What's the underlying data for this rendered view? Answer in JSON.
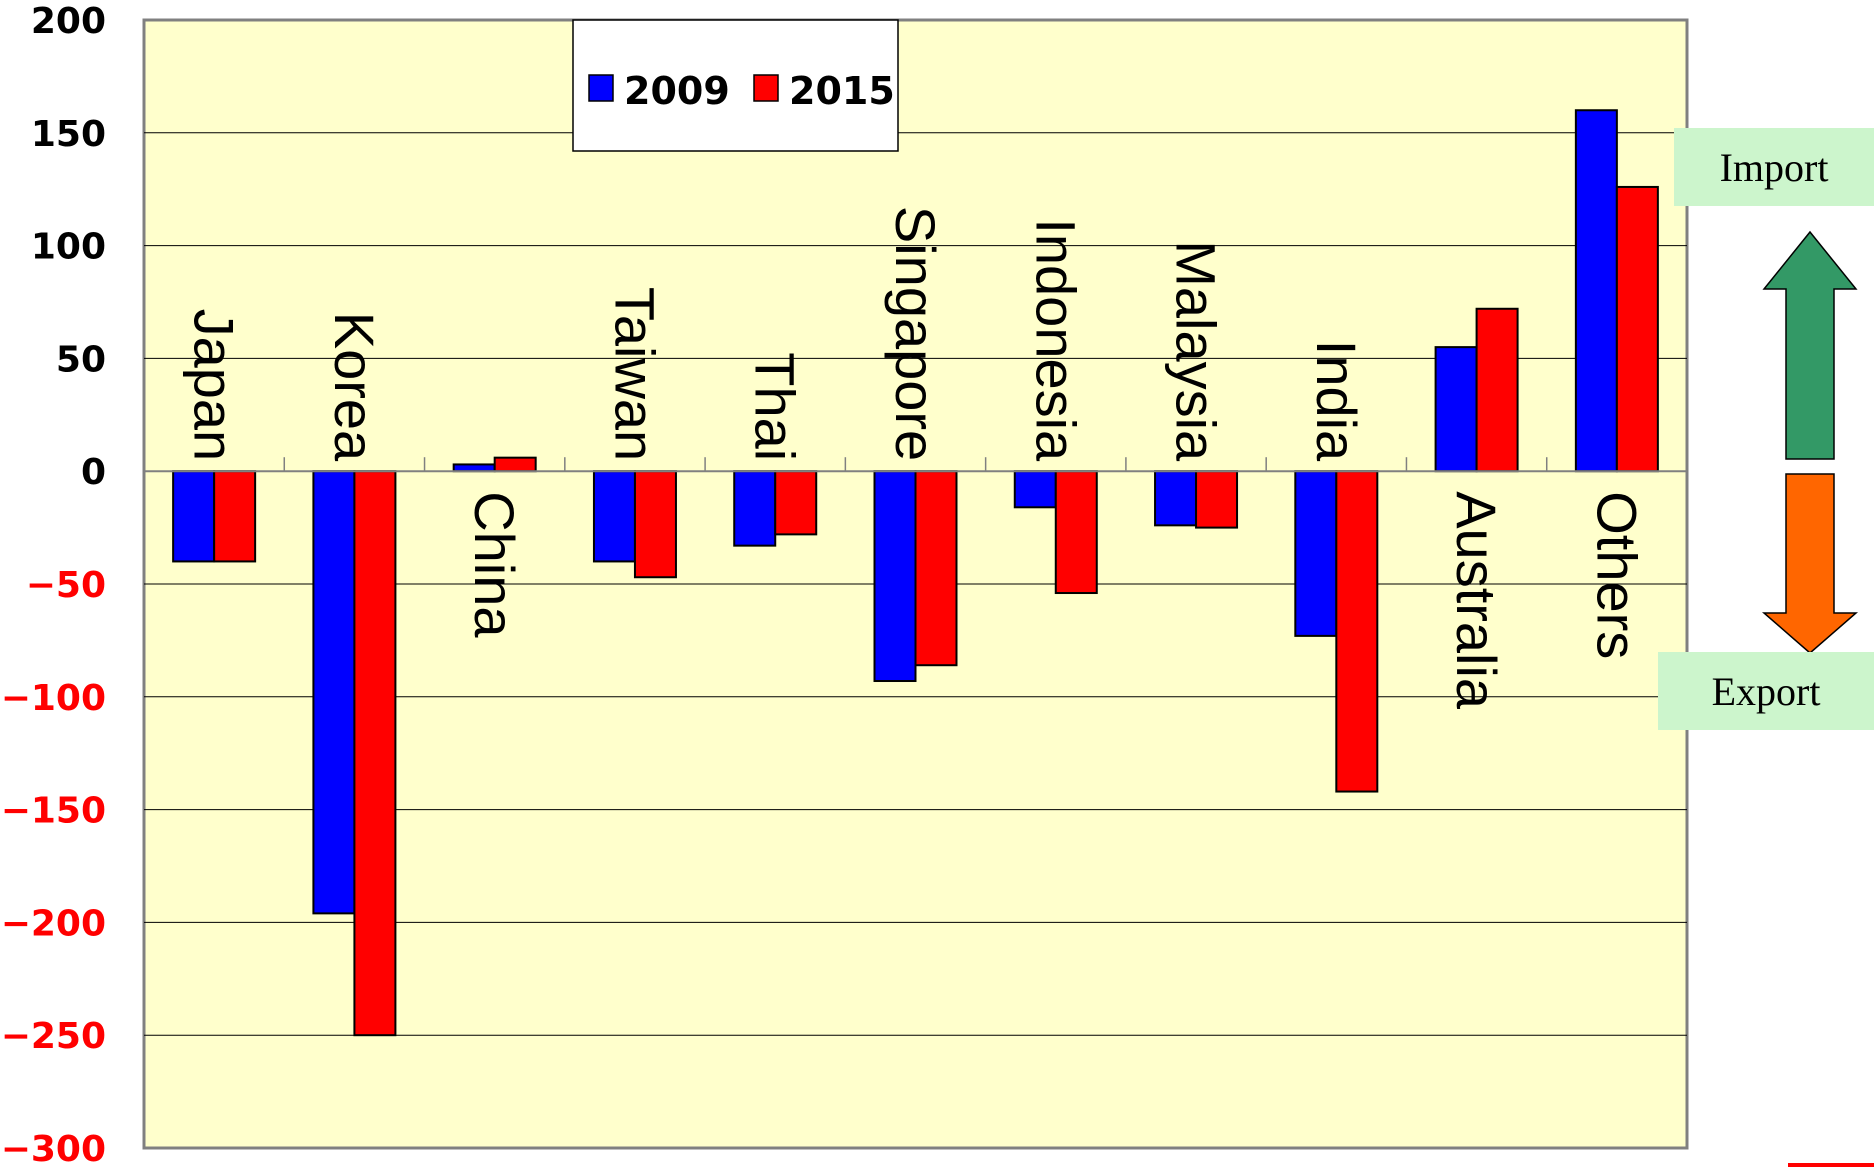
{
  "chart_data": {
    "type": "bar",
    "categories": [
      "Japan",
      "Korea",
      "China",
      "Taiwan",
      "Thai",
      "Singapore",
      "Indonesia",
      "Malaysia",
      "India",
      "Australia",
      "Others"
    ],
    "series": [
      {
        "name": "2009",
        "values": [
          -40,
          -196,
          3,
          -40,
          -33,
          -93,
          -16,
          -24,
          -73,
          55,
          160
        ]
      },
      {
        "name": "2015",
        "values": [
          -40,
          -250,
          6,
          -47,
          -28,
          -86,
          -54,
          -25,
          -142,
          72,
          126
        ]
      }
    ],
    "ylim": [
      -300,
      200
    ],
    "yticks": [
      200,
      150,
      100,
      50,
      0,
      -50,
      -100,
      -150,
      -200,
      -250,
      -300
    ],
    "ytick_labels": [
      "200",
      "150",
      "100",
      "50",
      "0",
      "−50",
      "−100",
      "−150",
      "−200",
      "−250",
      "−300"
    ],
    "grid": true,
    "legend_position": "top-center"
  },
  "colors": {
    "plot_bg": "#ffffcc",
    "series_2009": "#0000ff",
    "series_2015": "#ff0000",
    "positive_tick": "#000000",
    "negative_tick": "#ff0000",
    "import_arrow": "#339966",
    "export_arrow": "#ff6600"
  },
  "annotations": {
    "import_label": "Import",
    "export_label": "Export"
  }
}
